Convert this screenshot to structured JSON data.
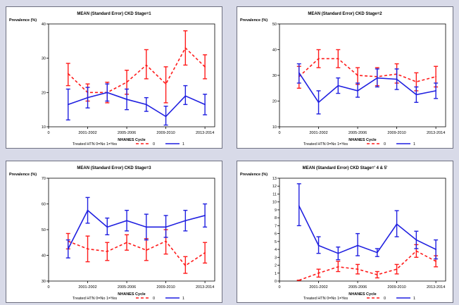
{
  "colors": {
    "group0": "#ff1a1a",
    "group1": "#1f1fe0",
    "axis": "#000000"
  },
  "chart_data": [
    {
      "type": "line",
      "title": "MEAN (Standard Error) CKD Stage=1",
      "ylabel": "Prevalence (%)",
      "xlabel": "NHANES Cycle",
      "ylim": [
        10,
        40
      ],
      "yticks": [
        10,
        20,
        30,
        40
      ],
      "x": [
        1,
        2,
        3,
        4,
        5,
        6,
        7,
        8
      ],
      "xlim": [
        0,
        8.5
      ],
      "xticks": [
        0,
        2,
        4,
        6,
        8
      ],
      "xtick_labels": [
        "0",
        "2001-2002",
        "2005-2006",
        "2009-2010",
        "2013-2014"
      ],
      "legend": {
        "title": "Treated HTN 0=No 1=Yes",
        "labels": [
          "0",
          "1"
        ],
        "placement": "bottom"
      },
      "grid": false,
      "series": [
        {
          "name": "0",
          "color": "#ff1a1a",
          "dashed": true,
          "values": [
            25.5,
            20,
            20,
            23,
            28,
            22.5,
            33,
            27.5
          ],
          "lower": [
            22,
            17.5,
            17,
            19.5,
            24,
            17,
            28,
            24
          ],
          "upper": [
            28.5,
            22.5,
            23,
            26.5,
            32.5,
            27.5,
            38,
            31
          ]
        },
        {
          "name": "1",
          "color": "#1f1fe0",
          "dashed": false,
          "values": [
            16.5,
            18.5,
            20,
            18,
            16.5,
            13,
            19,
            16.5
          ],
          "lower": [
            12,
            15.5,
            17.5,
            15,
            14.5,
            10.5,
            16.5,
            13.5
          ],
          "upper": [
            21,
            21.5,
            22.5,
            21,
            18.5,
            16,
            22,
            19.5
          ]
        }
      ]
    },
    {
      "type": "line",
      "title": "MEAN (Standard Error) CKD Stage=2",
      "ylabel": "Prevalence (%)",
      "xlabel": "NHANES Cycle",
      "ylim": [
        10,
        50
      ],
      "yticks": [
        10,
        20,
        30,
        40,
        50
      ],
      "x": [
        1,
        2,
        3,
        4,
        5,
        6,
        7,
        8
      ],
      "xlim": [
        0,
        8.5
      ],
      "xticks": [
        0,
        2,
        4,
        6,
        8
      ],
      "xtick_labels": [
        "0",
        "2001-2002",
        "2005-2006",
        "2009-2010",
        "2013-2014"
      ],
      "legend": {
        "title": "Treated HTN 0=No 1=Yes",
        "labels": [
          "0",
          "1"
        ],
        "placement": "bottom"
      },
      "grid": false,
      "series": [
        {
          "name": "0",
          "color": "#ff1a1a",
          "dashed": true,
          "values": [
            29.5,
            36.5,
            36.5,
            30,
            29.5,
            30.5,
            27.5,
            29.5
          ],
          "lower": [
            25,
            33,
            33,
            26.5,
            26,
            27,
            24,
            25.5
          ],
          "upper": [
            33.5,
            40,
            40,
            33,
            33,
            34.5,
            31,
            33.5
          ]
        },
        {
          "name": "1",
          "color": "#1f1fe0",
          "dashed": false,
          "values": [
            31,
            19.5,
            26,
            24,
            29,
            28.5,
            22.5,
            24
          ],
          "lower": [
            27,
            15,
            23,
            21.5,
            25.5,
            24.5,
            19.5,
            21
          ],
          "upper": [
            34.5,
            24,
            29,
            27,
            32.5,
            32.5,
            25.5,
            27
          ]
        }
      ]
    },
    {
      "type": "line",
      "title": "MEAN (Standard Error) CKD Stage=3",
      "ylabel": "Prevalence (%)",
      "xlabel": "NHANES Cycle",
      "ylim": [
        30,
        70
      ],
      "yticks": [
        30,
        40,
        50,
        60,
        70
      ],
      "x": [
        1,
        2,
        3,
        4,
        5,
        6,
        7,
        8
      ],
      "xlim": [
        0,
        8.5
      ],
      "xticks": [
        0,
        2,
        4,
        6,
        8
      ],
      "xtick_labels": [
        "0",
        "2001-2002",
        "2005-2006",
        "2009-2010",
        "2013-2014"
      ],
      "legend": {
        "title": "Treated HTN 0=No 1=Yes",
        "labels": [
          "0",
          "1"
        ],
        "placement": "bottom"
      },
      "grid": false,
      "series": [
        {
          "name": "0",
          "color": "#ff1a1a",
          "dashed": true,
          "values": [
            45.5,
            42.5,
            41.5,
            45,
            42,
            45.5,
            36,
            41
          ],
          "lower": [
            42.5,
            37.5,
            38,
            42,
            38,
            40.5,
            33,
            37
          ],
          "upper": [
            48.5,
            47.5,
            45,
            48,
            46.5,
            50,
            39.5,
            45
          ]
        },
        {
          "name": "1",
          "color": "#1f1fe0",
          "dashed": false,
          "values": [
            42.5,
            57.5,
            51,
            53.5,
            51,
            51,
            53.5,
            55.5
          ],
          "lower": [
            39,
            52.5,
            48,
            49.5,
            46,
            47,
            49.5,
            51
          ],
          "upper": [
            46,
            62.5,
            54.5,
            57.5,
            56,
            55.5,
            57.5,
            60
          ]
        }
      ]
    },
    {
      "type": "line",
      "title": "MEAN (Standard Error) CKD Stage=' 4 & 5'",
      "ylabel": "Prevalence (%)",
      "xlabel": "NHANES Cycle",
      "ylim": [
        0,
        13
      ],
      "yticks": [
        0,
        1,
        2,
        3,
        4,
        5,
        6,
        7,
        8,
        9,
        10,
        11,
        12,
        13
      ],
      "x": [
        1,
        2,
        3,
        4,
        5,
        6,
        7,
        8
      ],
      "xlim": [
        0,
        8.5
      ],
      "xticks": [
        0,
        2,
        4,
        6,
        8
      ],
      "xtick_labels": [
        "0",
        "2001-2002",
        "2005-2006",
        "2009-2010",
        "2013-2014"
      ],
      "legend": {
        "title": "Treated HTN 0=No 1=Yes",
        "labels": [
          "0",
          "1"
        ],
        "placement": "bottom"
      },
      "grid": false,
      "series": [
        {
          "name": "0",
          "color": "#ff1a1a",
          "dashed": true,
          "values": [
            0.1,
            1.0,
            1.8,
            1.5,
            0.8,
            1.5,
            3.8,
            2.5
          ],
          "lower": [
            0.1,
            0.5,
            1.2,
            0.9,
            0.4,
            0.9,
            3.0,
            1.8
          ],
          "upper": [
            0.1,
            1.5,
            2.5,
            2.1,
            1.2,
            2.1,
            4.6,
            3.2
          ]
        },
        {
          "name": "1",
          "color": "#1f1fe0",
          "dashed": false,
          "values": [
            9.5,
            4.5,
            3.5,
            4.5,
            3.6,
            7.2,
            5.2,
            4.0
          ],
          "lower": [
            7.0,
            3.5,
            2.7,
            3.2,
            3.1,
            5.6,
            4.1,
            2.8
          ],
          "upper": [
            12.3,
            5.6,
            4.3,
            6.0,
            4.1,
            8.9,
            6.3,
            5.2
          ]
        }
      ]
    }
  ]
}
